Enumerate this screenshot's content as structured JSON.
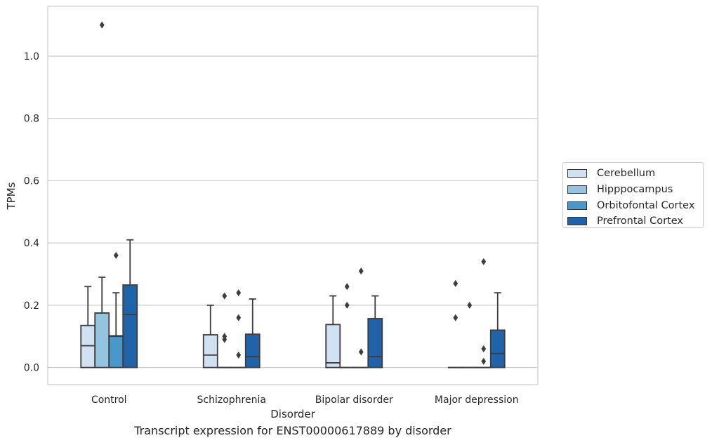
{
  "chart_data": {
    "type": "box",
    "title": "",
    "caption": "Transcript expression for ENST00000617889 by disorder",
    "xlabel": "Disorder",
    "ylabel": "TPMs",
    "ylim": [
      -0.055,
      1.16
    ],
    "yticks": [
      "0.0",
      "0.2",
      "0.4",
      "0.6",
      "0.8",
      "1.0"
    ],
    "grid": "horizontal",
    "legend_position": "right",
    "categories": [
      "Control",
      "Schizophrenia",
      "Bipolar disorder",
      "Major depression"
    ],
    "series": [
      {
        "name": "Cerebellum",
        "color": "#d0e1f2",
        "boxes": [
          {
            "q1": 0,
            "median": 0.07,
            "q3": 0.135,
            "whisker_low": 0,
            "whisker_high": 0.26,
            "outliers": []
          },
          {
            "q1": 0,
            "median": 0.04,
            "q3": 0.105,
            "whisker_low": 0,
            "whisker_high": 0.2,
            "outliers": []
          },
          {
            "q1": 0,
            "median": 0.015,
            "q3": 0.138,
            "whisker_low": 0,
            "whisker_high": 0.23,
            "outliers": []
          },
          {
            "q1": 0,
            "median": 0,
            "q3": 0,
            "whisker_low": 0,
            "whisker_high": 0,
            "outliers": [
              0.16,
              0.27
            ]
          }
        ]
      },
      {
        "name": "Hipppocampus",
        "color": "#94c4df",
        "boxes": [
          {
            "q1": 0,
            "median": 0.175,
            "q3": 0.175,
            "whisker_low": 0,
            "whisker_high": 0.29,
            "outliers": [
              1.1
            ]
          },
          {
            "q1": 0,
            "median": 0,
            "q3": 0,
            "whisker_low": 0,
            "whisker_high": 0,
            "outliers": [
              0.09,
              0.1,
              0.23
            ]
          },
          {
            "q1": 0,
            "median": 0,
            "q3": 0,
            "whisker_low": 0,
            "whisker_high": 0,
            "outliers": [
              0.2,
              0.26
            ]
          },
          {
            "q1": 0,
            "median": 0,
            "q3": 0,
            "whisker_low": 0,
            "whisker_high": 0,
            "outliers": [
              0.2
            ]
          }
        ]
      },
      {
        "name": "Orbitofontal Cortex",
        "color": "#4a98c9",
        "boxes": [
          {
            "q1": 0,
            "median": 0.1,
            "q3": 0.102,
            "whisker_low": 0,
            "whisker_high": 0.24,
            "outliers": [
              0.36
            ]
          },
          {
            "q1": 0,
            "median": 0,
            "q3": 0,
            "whisker_low": 0,
            "whisker_high": 0,
            "outliers": [
              0.04,
              0.16,
              0.24
            ]
          },
          {
            "q1": 0,
            "median": 0,
            "q3": 0,
            "whisker_low": 0,
            "whisker_high": 0,
            "outliers": [
              0.05,
              0.31
            ]
          },
          {
            "q1": 0,
            "median": 0,
            "q3": 0,
            "whisker_low": 0,
            "whisker_high": 0,
            "outliers": [
              0.02,
              0.06,
              0.34
            ]
          }
        ]
      },
      {
        "name": "Prefrontal Cortex",
        "color": "#2163aa",
        "boxes": [
          {
            "q1": 0,
            "median": 0.17,
            "q3": 0.265,
            "whisker_low": 0,
            "whisker_high": 0.41,
            "outliers": []
          },
          {
            "q1": 0,
            "median": 0.035,
            "q3": 0.107,
            "whisker_low": 0,
            "whisker_high": 0.22,
            "outliers": []
          },
          {
            "q1": 0,
            "median": 0.035,
            "q3": 0.157,
            "whisker_low": 0,
            "whisker_high": 0.23,
            "outliers": []
          },
          {
            "q1": 0,
            "median": 0.045,
            "q3": 0.12,
            "whisker_low": 0,
            "whisker_high": 0.24,
            "outliers": []
          }
        ]
      }
    ]
  }
}
